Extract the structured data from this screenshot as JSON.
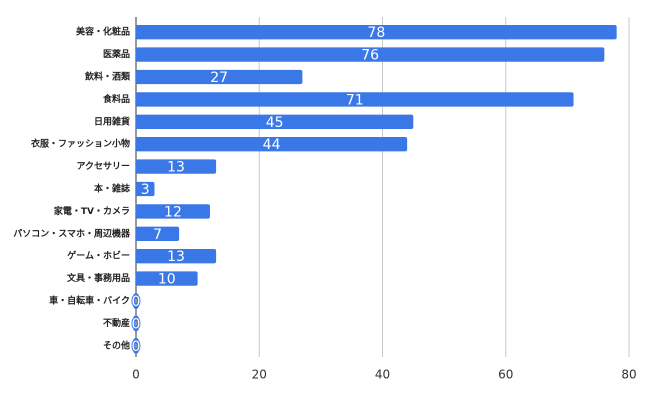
{
  "chart_data": {
    "type": "bar",
    "orientation": "horizontal",
    "categories": [
      "美容・化粧品",
      "医薬品",
      "飲料・酒類",
      "食料品",
      "日用雑貨",
      "衣服・ファッション小物",
      "アクセサリー",
      "本・雑誌",
      "家電・TV・カメラ",
      "パソコン・スマホ・周辺機器",
      "ゲーム・ホビー",
      "文具・事務用品",
      "車・自転車・バイク",
      "不動産",
      "その他"
    ],
    "values": [
      78,
      76,
      27,
      71,
      45,
      44,
      13,
      3,
      12,
      7,
      13,
      10,
      0,
      0,
      0
    ],
    "color": "#3b78e7",
    "xlim": [
      0,
      80
    ],
    "xticks": [
      0,
      20,
      40,
      60,
      80
    ],
    "grid": true
  }
}
